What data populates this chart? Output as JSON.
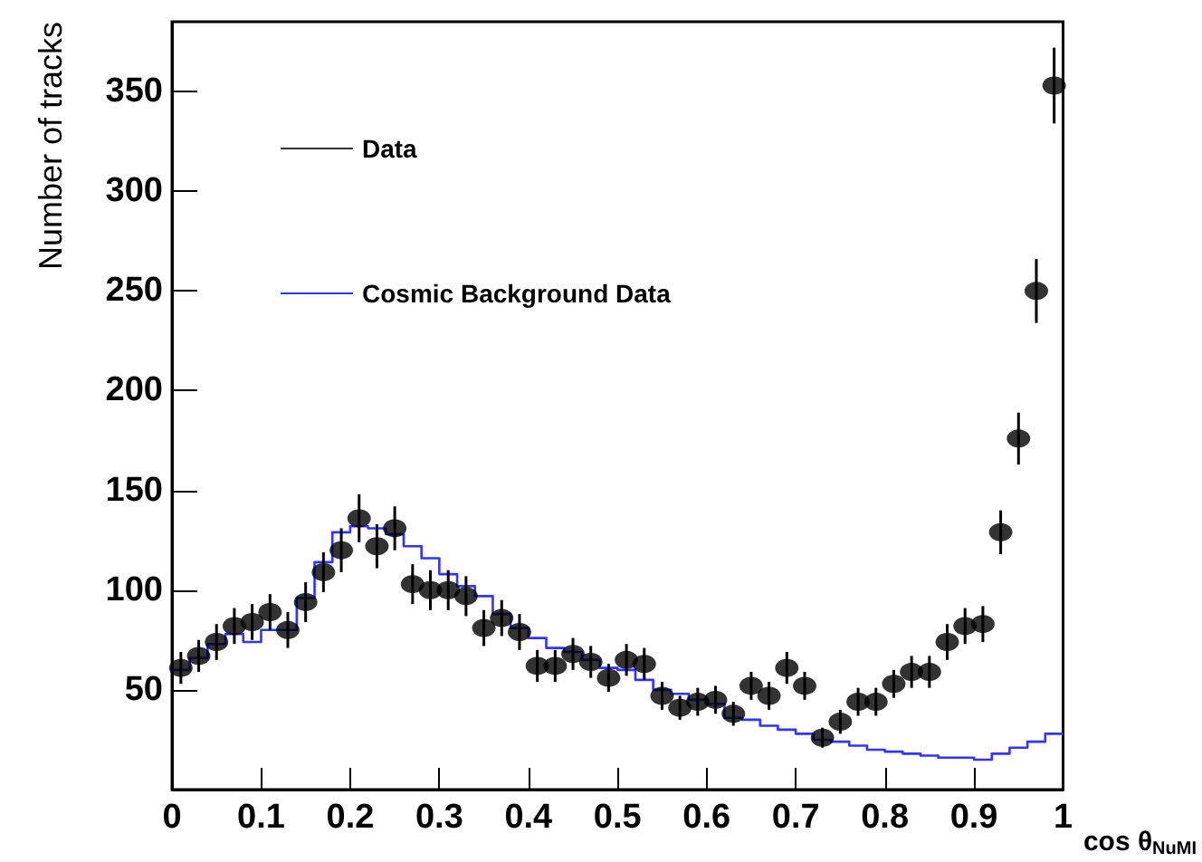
{
  "chart_data": {
    "type": "scatter",
    "xlabel": "cos θ$_{NuMI}$",
    "ylabel": "Number of tracks",
    "xlim": [
      0,
      1
    ],
    "ylim": [
      0,
      385
    ],
    "xticks": [
      0,
      0.1,
      0.2,
      0.3,
      0.4,
      0.5,
      0.6,
      0.7,
      0.8,
      0.9,
      1
    ],
    "yticks": [
      50,
      100,
      150,
      200,
      250,
      300,
      350
    ],
    "legend": "top left",
    "marker": "circle",
    "grid": false,
    "series": [
      {
        "name": "Data",
        "color": "#000000",
        "x": [
          0.01,
          0.03,
          0.05,
          0.07,
          0.09,
          0.11,
          0.13,
          0.15,
          0.17,
          0.19,
          0.21,
          0.23,
          0.25,
          0.27,
          0.29,
          0.31,
          0.33,
          0.35,
          0.37,
          0.39,
          0.41,
          0.43,
          0.45,
          0.47,
          0.49,
          0.51,
          0.53,
          0.55,
          0.57,
          0.59,
          0.61,
          0.63,
          0.65,
          0.67,
          0.69,
          0.71,
          0.73,
          0.75,
          0.77,
          0.79,
          0.81,
          0.83,
          0.85,
          0.87,
          0.89,
          0.91,
          0.93,
          0.95,
          0.97,
          0.99
        ],
        "values": [
          61,
          67,
          74,
          82,
          84,
          89,
          80,
          94,
          109,
          120,
          136,
          122,
          131,
          103,
          100,
          100,
          97,
          81,
          86,
          79,
          62,
          62,
          68,
          64,
          56,
          65,
          63,
          47,
          41,
          44,
          45,
          38,
          52,
          47,
          61,
          52,
          26,
          34,
          44,
          44,
          53,
          59,
          59,
          74,
          82,
          83,
          129,
          176,
          250,
          353
        ],
        "errors": [
          8,
          8,
          9,
          9,
          9,
          9,
          9,
          10,
          10,
          11,
          12,
          11,
          11,
          10,
          10,
          10,
          10,
          9,
          9,
          9,
          8,
          8,
          8,
          8,
          7,
          8,
          8,
          7,
          6,
          7,
          7,
          6,
          7,
          7,
          8,
          7,
          5,
          6,
          7,
          7,
          7,
          8,
          8,
          9,
          9,
          9,
          11,
          13,
          16,
          19
        ]
      },
      {
        "name": "Cosmic Background Data",
        "type": "histogram",
        "color": "#3333ff",
        "bins": [
          0,
          0.02,
          0.04,
          0.06,
          0.08,
          0.1,
          0.12,
          0.14,
          0.16,
          0.18,
          0.2,
          0.22,
          0.24,
          0.26,
          0.28,
          0.3,
          0.32,
          0.34,
          0.36,
          0.38,
          0.4,
          0.42,
          0.44,
          0.46,
          0.48,
          0.5,
          0.52,
          0.54,
          0.56,
          0.58,
          0.6,
          0.62,
          0.64,
          0.66,
          0.68,
          0.7,
          0.72,
          0.74,
          0.76,
          0.78,
          0.8,
          0.82,
          0.84,
          0.86,
          0.88,
          0.9,
          0.92,
          0.94,
          0.96,
          0.98,
          1
        ],
        "values": [
          60,
          66,
          73,
          78,
          74,
          80,
          80,
          96,
          114,
          129,
          132,
          131,
          128,
          122,
          116,
          108,
          102,
          97,
          88,
          81,
          76,
          71,
          69,
          65,
          61,
          60,
          55,
          50,
          48,
          45,
          43,
          36,
          35,
          32,
          30,
          28,
          25,
          24,
          22,
          20,
          19,
          18,
          17,
          16,
          16,
          15,
          18,
          21,
          24,
          28
        ]
      }
    ]
  }
}
